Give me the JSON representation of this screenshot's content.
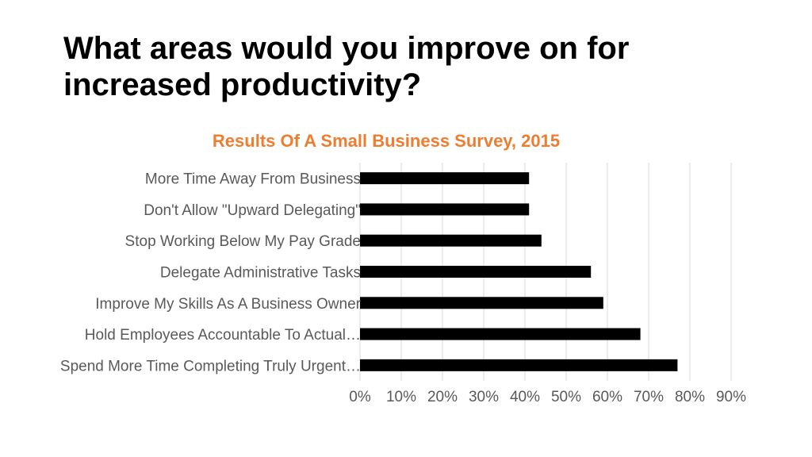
{
  "slide": {
    "title_line1": "What areas would you improve on for",
    "title_line2": "increased productivity?"
  },
  "colors": {
    "bar": "#000000",
    "chart_title": "#ED7D31",
    "gridline": "#D9D9D9",
    "label": "#595959"
  },
  "chart_data": {
    "type": "bar",
    "orientation": "horizontal",
    "title": "Results Of A Small Business Survey, 2015",
    "categories": [
      "More Time Away From Business",
      "Don't Allow \"Upward Delegating\"",
      "Stop Working Below My Pay Grade",
      "Delegate Administrative Tasks",
      "Improve My Skills As A Business Owner",
      "Hold Employees Accountable To Actual…",
      "Spend More Time Completing Truly Urgent…"
    ],
    "values": [
      0.41,
      0.41,
      0.44,
      0.56,
      0.59,
      0.68,
      0.77
    ],
    "xlim": [
      0,
      0.9
    ],
    "xticks": [
      "0%",
      "10%",
      "20%",
      "30%",
      "40%",
      "50%",
      "60%",
      "70%",
      "80%",
      "90%"
    ],
    "grid": true,
    "legend": "none"
  }
}
